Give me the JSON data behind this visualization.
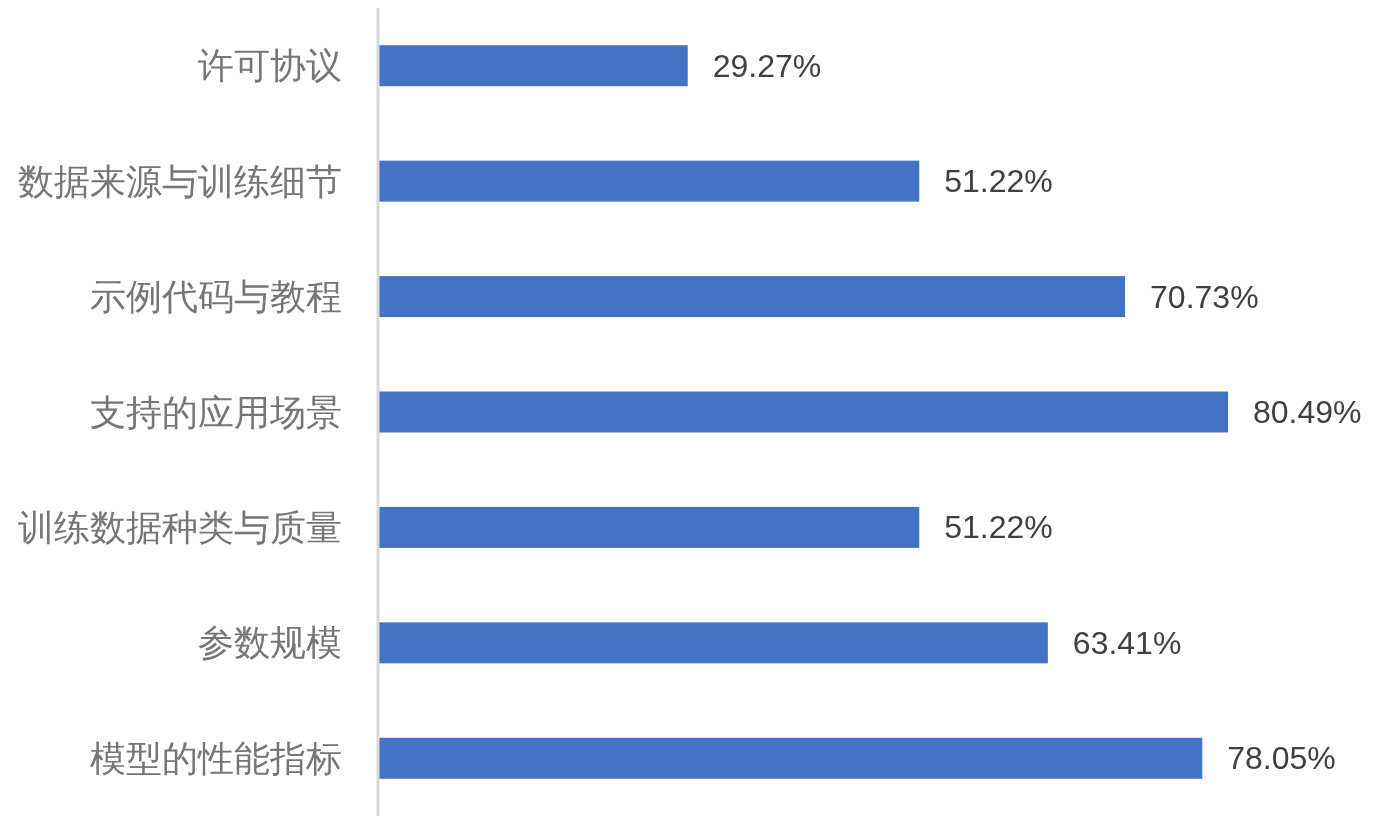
{
  "chart_data": {
    "type": "bar",
    "orientation": "horizontal",
    "categories": [
      "许可协议",
      "数据来源与训练细节",
      "示例代码与教程",
      "支持的应用场景",
      "训练数据种类与质量",
      "参数规模",
      "模型的性能指标"
    ],
    "values": [
      29.27,
      51.22,
      70.73,
      80.49,
      51.22,
      63.41,
      78.05
    ],
    "value_labels": [
      "29.27%",
      "51.22%",
      "70.73%",
      "80.49%",
      "51.22%",
      "63.41%",
      "78.05%"
    ],
    "color": "#4472c4"
  }
}
